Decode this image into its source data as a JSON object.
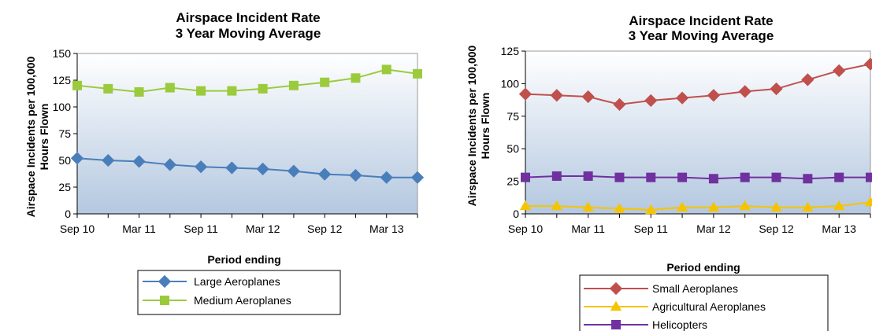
{
  "chart_data": [
    {
      "type": "line",
      "title_line1": "Airspace Incident Rate",
      "title_line2": "3 Year Moving Average",
      "xlabel": "Period ending",
      "ylabel_line1": "Airspace Incidents per 100,000",
      "ylabel_line2": "Hours Flown",
      "ylim": [
        0,
        150
      ],
      "yticks": [
        "0",
        "25",
        "50",
        "75",
        "100",
        "125",
        "150"
      ],
      "xtick_labels": [
        "Sep 10",
        "Mar 11",
        "Sep 11",
        "Mar 12",
        "Sep 12",
        "Mar 13"
      ],
      "x": [
        "Sep 10",
        "Dec 10",
        "Mar 11",
        "Jun 11",
        "Sep 11",
        "Dec 11",
        "Mar 12",
        "Jun 12",
        "Sep 12",
        "Dec 12",
        "Mar 13",
        "Jun 13"
      ],
      "grid": false,
      "legend_position": "bottom",
      "series": [
        {
          "name": "Large Aeroplanes",
          "color": "#4A7EBB",
          "marker": "diamond",
          "values": [
            52,
            50,
            49,
            46,
            44,
            43,
            42,
            40,
            37,
            36,
            34,
            34
          ]
        },
        {
          "name": "Medium Aeroplanes",
          "color": "#9BCB3C",
          "marker": "square",
          "values": [
            120,
            117,
            114,
            118,
            115,
            115,
            117,
            120,
            123,
            127,
            135,
            131
          ]
        }
      ]
    },
    {
      "type": "line",
      "title_line1": "Airspace Incident Rate",
      "title_line2": "3 Year Moving Average",
      "xlabel": "Period ending",
      "ylabel_line1": "Airspace Incidents per 100,000",
      "ylabel_line2": "Hours Flown",
      "ylim": [
        0,
        125
      ],
      "yticks": [
        "0",
        "25",
        "50",
        "75",
        "100",
        "125"
      ],
      "xtick_labels": [
        "Sep 10",
        "Mar 11",
        "Sep 11",
        "Mar 12",
        "Sep 12",
        "Mar 13"
      ],
      "x": [
        "Sep 10",
        "Dec 10",
        "Mar 11",
        "Jun 11",
        "Sep 11",
        "Dec 11",
        "Mar 12",
        "Jun 12",
        "Sep 12",
        "Dec 12",
        "Mar 13",
        "Jun 13"
      ],
      "grid": false,
      "legend_position": "bottom",
      "series": [
        {
          "name": "Small Aeroplanes",
          "color": "#C0504D",
          "marker": "diamond",
          "values": [
            92,
            91,
            90,
            84,
            87,
            89,
            91,
            94,
            96,
            103,
            110,
            115
          ]
        },
        {
          "name": "Agricultural Aeroplanes",
          "color": "#F5C400",
          "marker": "triangle",
          "values": [
            6,
            6,
            5,
            4,
            3,
            5,
            5,
            6,
            5,
            5,
            6,
            9
          ]
        },
        {
          "name": "Helicopters",
          "color": "#7030A0",
          "marker": "square",
          "values": [
            28,
            29,
            29,
            28,
            28,
            28,
            27,
            28,
            28,
            27,
            28,
            28
          ]
        }
      ]
    }
  ]
}
